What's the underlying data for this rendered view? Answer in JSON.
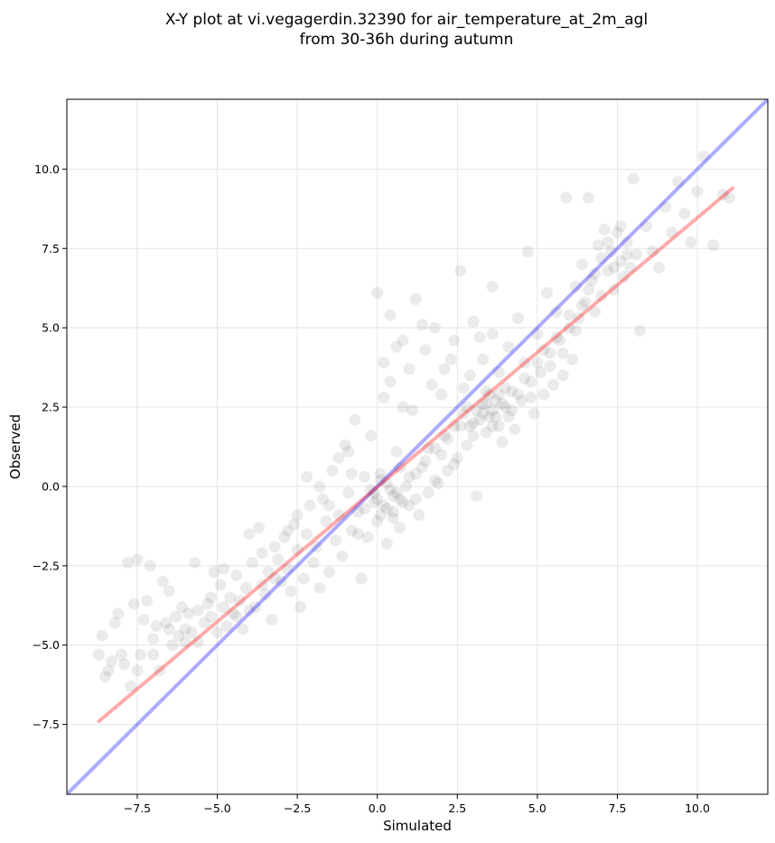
{
  "chart_data": {
    "type": "scatter",
    "title": [
      "X-Y plot at vi.vegagerdin.32390 for air_temperature_at_2m_agl",
      "from 30-36h during autumn"
    ],
    "xlabel": "Simulated",
    "ylabel": "Observed",
    "xlim": [
      -9.7,
      12.2
    ],
    "ylim": [
      -9.7,
      12.2
    ],
    "x_ticks": [
      -7.5,
      -5.0,
      -2.5,
      0.0,
      2.5,
      5.0,
      7.5,
      10.0
    ],
    "y_ticks": [
      -7.5,
      -5.0,
      -2.5,
      0.0,
      2.5,
      5.0,
      7.5,
      10.0
    ],
    "x_tick_labels": [
      "−7.5",
      "−5.0",
      "−2.5",
      "0.0",
      "2.5",
      "5.0",
      "7.5",
      "10.0"
    ],
    "y_tick_labels": [
      "−7.5",
      "−5.0",
      "−2.5",
      "0.0",
      "2.5",
      "5.0",
      "7.5",
      "10.0"
    ],
    "grid": true,
    "point_color": "#000000",
    "point_opacity": 0.08,
    "reference_line": {
      "type": "identity",
      "color": "#0000ff",
      "x": [
        -9.7,
        12.2
      ],
      "y": [
        -9.7,
        12.2
      ]
    },
    "fit_line": {
      "color": "#ff0000",
      "x": [
        -8.7,
        11.1
      ],
      "y": [
        -7.4,
        9.4
      ]
    },
    "points": [
      [
        -8.7,
        -5.3
      ],
      [
        -8.6,
        -4.7
      ],
      [
        -8.5,
        -6.0
      ],
      [
        -8.4,
        -5.8
      ],
      [
        -8.3,
        -5.5
      ],
      [
        -8.2,
        -4.3
      ],
      [
        -8.1,
        -4.0
      ],
      [
        -8.0,
        -5.3
      ],
      [
        -7.9,
        -5.6
      ],
      [
        -7.8,
        -2.4
      ],
      [
        -7.7,
        -6.3
      ],
      [
        -7.6,
        -3.7
      ],
      [
        -7.5,
        -2.3
      ],
      [
        -7.4,
        -5.3
      ],
      [
        -7.3,
        -4.2
      ],
      [
        -7.2,
        -3.6
      ],
      [
        -7.1,
        -2.5
      ],
      [
        -7.0,
        -4.8
      ],
      [
        -6.9,
        -4.4
      ],
      [
        -6.8,
        -5.8
      ],
      [
        -6.7,
        -3.0
      ],
      [
        -6.6,
        -4.3
      ],
      [
        -6.5,
        -3.3
      ],
      [
        -6.4,
        -5.0
      ],
      [
        -6.3,
        -4.1
      ],
      [
        -6.2,
        -4.7
      ],
      [
        -6.1,
        -3.8
      ],
      [
        -6.0,
        -4.5
      ],
      [
        -5.9,
        -4.0
      ],
      [
        -5.8,
        -4.6
      ],
      [
        -5.7,
        -2.4
      ],
      [
        -5.6,
        -4.9
      ],
      [
        -5.4,
        -4.3
      ],
      [
        -5.3,
        -3.7
      ],
      [
        -5.2,
        -4.1
      ],
      [
        -5.1,
        -2.7
      ],
      [
        -5.0,
        -4.6
      ],
      [
        -4.9,
        -3.1
      ],
      [
        -4.8,
        -2.6
      ],
      [
        -4.7,
        -4.4
      ],
      [
        -4.6,
        -3.5
      ],
      [
        -4.5,
        -4.0
      ],
      [
        -4.4,
        -2.8
      ],
      [
        -4.3,
        -3.6
      ],
      [
        -4.2,
        -4.5
      ],
      [
        -4.1,
        -3.2
      ],
      [
        -4.0,
        -1.5
      ],
      [
        -3.9,
        -2.4
      ],
      [
        -3.8,
        -3.8
      ],
      [
        -3.7,
        -1.3
      ],
      [
        -3.6,
        -2.1
      ],
      [
        -3.5,
        -3.4
      ],
      [
        -3.4,
        -2.7
      ],
      [
        -3.3,
        -4.2
      ],
      [
        -3.2,
        -1.9
      ],
      [
        -3.1,
        -2.3
      ],
      [
        -3.0,
        -3.0
      ],
      [
        -2.9,
        -1.6
      ],
      [
        -2.8,
        -2.6
      ],
      [
        -2.7,
        -3.3
      ],
      [
        -2.6,
        -1.2
      ],
      [
        -2.5,
        -2.0
      ],
      [
        -2.4,
        -3.8
      ],
      [
        -2.3,
        -2.9
      ],
      [
        -2.2,
        -1.5
      ],
      [
        -2.1,
        -0.6
      ],
      [
        -2.0,
        -2.4
      ],
      [
        -1.9,
        -1.9
      ],
      [
        -1.8,
        -3.2
      ],
      [
        -1.7,
        -0.4
      ],
      [
        -1.6,
        -1.1
      ],
      [
        -1.5,
        -2.7
      ],
      [
        -1.4,
        0.5
      ],
      [
        -1.3,
        -1.7
      ],
      [
        -1.2,
        -0.9
      ],
      [
        -1.1,
        -2.2
      ],
      [
        -1.0,
        1.3
      ],
      [
        -0.9,
        -0.2
      ],
      [
        -0.8,
        -1.4
      ],
      [
        -0.7,
        2.1
      ],
      [
        -0.6,
        -0.8
      ],
      [
        -0.5,
        -2.9
      ],
      [
        -0.4,
        0.3
      ],
      [
        -0.3,
        -1.6
      ],
      [
        -0.2,
        1.6
      ],
      [
        -0.1,
        -0.5
      ],
      [
        0.0,
        6.1
      ],
      [
        0.0,
        -1.1
      ],
      [
        0.1,
        0.2
      ],
      [
        0.2,
        3.9
      ],
      [
        0.3,
        -0.7
      ],
      [
        0.4,
        5.4
      ],
      [
        0.5,
        -0.3
      ],
      [
        0.6,
        1.1
      ],
      [
        0.7,
        -1.3
      ],
      [
        0.8,
        4.6
      ],
      [
        0.9,
        0.0
      ],
      [
        1.0,
        -0.6
      ],
      [
        1.1,
        2.4
      ],
      [
        1.2,
        0.4
      ],
      [
        1.3,
        -0.9
      ],
      [
        1.4,
        5.1
      ],
      [
        1.5,
        0.8
      ],
      [
        1.6,
        -0.2
      ],
      [
        1.7,
        3.2
      ],
      [
        1.8,
        1.2
      ],
      [
        1.9,
        0.1
      ],
      [
        2.0,
        2.9
      ],
      [
        2.1,
        1.6
      ],
      [
        2.2,
        0.5
      ],
      [
        2.3,
        4.0
      ],
      [
        2.4,
        1.9
      ],
      [
        2.5,
        0.9
      ],
      [
        2.6,
        6.8
      ],
      [
        2.7,
        2.3
      ],
      [
        2.8,
        1.3
      ],
      [
        2.9,
        3.5
      ],
      [
        3.0,
        2.0
      ],
      [
        3.1,
        -0.3
      ],
      [
        3.2,
        4.7
      ],
      [
        3.3,
        2.6
      ],
      [
        3.4,
        1.7
      ],
      [
        3.5,
        2.9
      ],
      [
        3.6,
        6.3
      ],
      [
        3.7,
        2.2
      ],
      [
        3.8,
        3.6
      ],
      [
        3.9,
        1.4
      ],
      [
        4.0,
        2.5
      ],
      [
        4.1,
        4.4
      ],
      [
        4.2,
        3.0
      ],
      [
        4.3,
        1.8
      ],
      [
        4.4,
        5.3
      ],
      [
        4.5,
        2.7
      ],
      [
        4.6,
        3.9
      ],
      [
        4.7,
        7.4
      ],
      [
        4.8,
        3.3
      ],
      [
        4.9,
        2.3
      ],
      [
        5.0,
        4.8
      ],
      [
        5.1,
        3.6
      ],
      [
        5.2,
        2.9
      ],
      [
        5.3,
        6.1
      ],
      [
        5.4,
        4.2
      ],
      [
        5.5,
        3.2
      ],
      [
        5.6,
        5.5
      ],
      [
        5.7,
        4.6
      ],
      [
        5.8,
        3.5
      ],
      [
        5.9,
        9.1
      ],
      [
        6.0,
        5.0
      ],
      [
        6.1,
        4.0
      ],
      [
        6.2,
        6.3
      ],
      [
        6.3,
        5.3
      ],
      [
        6.4,
        7.0
      ],
      [
        6.5,
        5.8
      ],
      [
        6.6,
        9.1
      ],
      [
        6.7,
        6.5
      ],
      [
        6.8,
        5.5
      ],
      [
        6.9,
        7.6
      ],
      [
        7.0,
        6.0
      ],
      [
        7.1,
        8.1
      ],
      [
        7.2,
        6.8
      ],
      [
        7.3,
        7.4
      ],
      [
        7.4,
        6.2
      ],
      [
        7.5,
        8.0
      ],
      [
        7.6,
        7.1
      ],
      [
        7.7,
        6.6
      ],
      [
        7.8,
        7.7
      ],
      [
        7.9,
        6.9
      ],
      [
        8.0,
        9.7
      ],
      [
        8.1,
        7.3
      ],
      [
        8.2,
        4.9
      ],
      [
        8.4,
        8.2
      ],
      [
        8.6,
        7.4
      ],
      [
        8.8,
        6.9
      ],
      [
        9.0,
        8.8
      ],
      [
        9.2,
        8.0
      ],
      [
        9.4,
        9.6
      ],
      [
        9.6,
        8.6
      ],
      [
        9.8,
        7.7
      ],
      [
        10.0,
        9.3
      ],
      [
        10.2,
        10.4
      ],
      [
        10.5,
        7.6
      ],
      [
        10.8,
        9.2
      ],
      [
        11.0,
        9.1
      ],
      [
        -0.9,
        1.1
      ],
      [
        -0.8,
        0.4
      ],
      [
        -0.6,
        -1.5
      ],
      [
        -0.4,
        -0.7
      ],
      [
        -0.2,
        -0.1
      ],
      [
        0.1,
        -0.9
      ],
      [
        0.3,
        -1.8
      ],
      [
        0.5,
        -0.8
      ],
      [
        0.6,
        -0.2
      ],
      [
        0.7,
        0.6
      ],
      [
        0.8,
        -0.5
      ],
      [
        1.0,
        0.3
      ],
      [
        1.2,
        -0.4
      ],
      [
        1.4,
        0.6
      ],
      [
        1.6,
        1.2
      ],
      [
        1.8,
        0.2
      ],
      [
        2.0,
        1.0
      ],
      [
        2.2,
        1.5
      ],
      [
        2.4,
        0.7
      ],
      [
        2.6,
        1.9
      ],
      [
        2.8,
        2.5
      ],
      [
        3.0,
        1.6
      ],
      [
        3.2,
        2.1
      ],
      [
        3.4,
        3.0
      ],
      [
        3.6,
        2.4
      ],
      [
        3.8,
        1.9
      ],
      [
        4.0,
        3.1
      ],
      [
        4.2,
        2.4
      ],
      [
        4.4,
        2.9
      ],
      [
        4.6,
        3.4
      ],
      [
        4.8,
        2.8
      ],
      [
        5.0,
        3.9
      ],
      [
        5.2,
        4.3
      ],
      [
        5.4,
        3.8
      ],
      [
        5.6,
        4.7
      ],
      [
        5.8,
        4.2
      ],
      [
        6.0,
        5.4
      ],
      [
        6.2,
        4.9
      ],
      [
        6.4,
        5.7
      ],
      [
        6.6,
        6.2
      ],
      [
        6.8,
        6.7
      ],
      [
        7.0,
        7.2
      ],
      [
        7.2,
        7.7
      ],
      [
        7.4,
        6.9
      ],
      [
        7.6,
        8.2
      ],
      [
        7.8,
        7.3
      ],
      [
        0.2,
        2.8
      ],
      [
        0.4,
        3.3
      ],
      [
        0.6,
        4.4
      ],
      [
        0.8,
        2.5
      ],
      [
        1.0,
        3.7
      ],
      [
        1.2,
        5.9
      ],
      [
        1.5,
        4.3
      ],
      [
        1.8,
        5.0
      ],
      [
        2.1,
        3.7
      ],
      [
        2.4,
        4.6
      ],
      [
        2.7,
        3.1
      ],
      [
        3.0,
        5.2
      ],
      [
        3.3,
        4.0
      ],
      [
        3.6,
        4.8
      ],
      [
        -1.2,
        0.9
      ],
      [
        -1.5,
        -0.6
      ],
      [
        -1.8,
        0.0
      ],
      [
        -2.2,
        0.3
      ],
      [
        -2.5,
        -0.9
      ],
      [
        -2.8,
        -1.4
      ],
      [
        -3.2,
        -2.9
      ],
      [
        -3.6,
        -3.1
      ],
      [
        -4.0,
        -3.9
      ],
      [
        -4.4,
        -4.1
      ],
      [
        -4.8,
        -3.8
      ],
      [
        -5.2,
        -3.5
      ],
      [
        -5.6,
        -3.9
      ],
      [
        -6.0,
        -4.9
      ],
      [
        -6.5,
        -4.5
      ],
      [
        -7.0,
        -5.3
      ],
      [
        -7.5,
        -5.8
      ],
      [
        0.0,
        -0.4
      ],
      [
        0.2,
        -0.6
      ],
      [
        0.4,
        -0.1
      ],
      [
        0.1,
        0.4
      ],
      [
        -0.1,
        -0.2
      ],
      [
        0.3,
        0.1
      ],
      [
        0.5,
        -1.0
      ],
      [
        0.7,
        -0.4
      ],
      [
        3.5,
        2.2
      ],
      [
        3.7,
        2.7
      ],
      [
        3.3,
        2.3
      ],
      [
        3.9,
        2.6
      ],
      [
        3.1,
        2.4
      ],
      [
        3.6,
        1.9
      ],
      [
        3.4,
        2.6
      ],
      [
        4.1,
        2.2
      ],
      [
        2.9,
        1.9
      ],
      [
        3.8,
        2.9
      ]
    ]
  }
}
